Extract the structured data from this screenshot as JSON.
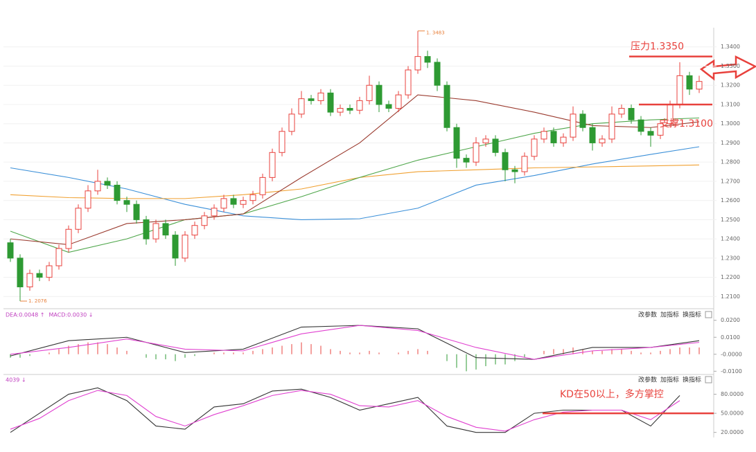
{
  "chart_data": [
    {
      "type": "candlestick",
      "open": [
        1.238,
        1.23,
        1.215,
        1.222,
        1.22,
        1.226,
        1.235,
        1.245,
        1.256,
        1.265,
        1.27,
        1.268,
        1.26,
        1.258,
        1.25,
        1.24,
        1.248,
        1.242,
        1.23,
        1.242,
        1.247,
        1.252,
        1.256,
        1.261,
        1.258,
        1.26,
        1.263,
        1.272,
        1.285,
        1.296,
        1.305,
        1.313,
        1.312,
        1.316,
        1.306,
        1.308,
        1.307,
        1.312,
        1.32,
        1.31,
        1.308,
        1.315,
        1.328,
        1.335,
        1.332,
        1.32,
        1.298,
        1.282,
        1.28,
        1.29,
        1.292,
        1.285,
        1.276,
        1.275,
        1.283,
        1.292,
        1.296,
        1.29,
        1.293,
        1.305,
        1.298,
        1.29,
        1.292,
        1.305,
        1.308,
        1.302,
        1.296,
        1.294,
        1.3,
        1.31,
        1.325,
        1.318
      ],
      "high": [
        1.24,
        1.232,
        1.224,
        1.224,
        1.228,
        1.237,
        1.247,
        1.258,
        1.268,
        1.276,
        1.272,
        1.27,
        1.262,
        1.26,
        1.252,
        1.25,
        1.25,
        1.244,
        1.244,
        1.249,
        1.254,
        1.258,
        1.263,
        1.263,
        1.262,
        1.265,
        1.274,
        1.287,
        1.298,
        1.308,
        1.317,
        1.315,
        1.318,
        1.318,
        1.31,
        1.31,
        1.314,
        1.325,
        1.322,
        1.312,
        1.317,
        1.33,
        1.3483,
        1.338,
        1.334,
        1.322,
        1.3,
        1.284,
        1.293,
        1.294,
        1.294,
        1.287,
        1.278,
        1.285,
        1.294,
        1.298,
        1.298,
        1.295,
        1.309,
        1.307,
        1.3,
        1.294,
        1.309,
        1.31,
        1.31,
        1.304,
        1.298,
        1.302,
        1.312,
        1.332,
        1.327,
        1.325
      ],
      "low": [
        1.228,
        1.2076,
        1.213,
        1.218,
        1.218,
        1.224,
        1.233,
        1.243,
        1.254,
        1.263,
        1.266,
        1.258,
        1.254,
        1.248,
        1.237,
        1.238,
        1.24,
        1.226,
        1.228,
        1.24,
        1.245,
        1.25,
        1.254,
        1.256,
        1.256,
        1.258,
        1.261,
        1.27,
        1.283,
        1.294,
        1.303,
        1.31,
        1.31,
        1.304,
        1.304,
        1.305,
        1.305,
        1.31,
        1.306,
        1.306,
        1.306,
        1.313,
        1.326,
        1.329,
        1.317,
        1.296,
        1.277,
        1.277,
        1.278,
        1.288,
        1.283,
        1.27,
        1.269,
        1.273,
        1.281,
        1.29,
        1.288,
        1.288,
        1.291,
        1.296,
        1.286,
        1.288,
        1.29,
        1.303,
        1.3,
        1.294,
        1.288,
        1.292,
        1.298,
        1.308,
        1.315,
        1.316
      ],
      "close": [
        1.23,
        1.215,
        1.222,
        1.22,
        1.226,
        1.235,
        1.245,
        1.256,
        1.265,
        1.27,
        1.268,
        1.26,
        1.258,
        1.25,
        1.24,
        1.248,
        1.242,
        1.23,
        1.242,
        1.247,
        1.252,
        1.256,
        1.261,
        1.258,
        1.26,
        1.263,
        1.272,
        1.285,
        1.296,
        1.305,
        1.313,
        1.312,
        1.316,
        1.306,
        1.308,
        1.307,
        1.312,
        1.32,
        1.31,
        1.308,
        1.315,
        1.328,
        1.335,
        1.332,
        1.32,
        1.298,
        1.282,
        1.28,
        1.29,
        1.292,
        1.285,
        1.276,
        1.275,
        1.283,
        1.292,
        1.296,
        1.29,
        1.293,
        1.305,
        1.298,
        1.29,
        1.292,
        1.305,
        1.308,
        1.302,
        1.296,
        1.294,
        1.3,
        1.31,
        1.325,
        1.318,
        1.322
      ],
      "up_color": "#e8413c",
      "down_color": "#2e9a33",
      "series": [
        {
          "color": "#3a8fd8",
          "x": [
            0,
            6,
            12,
            18,
            24,
            30,
            36,
            42,
            48,
            54,
            60,
            66,
            71
          ],
          "values": [
            1.277,
            1.272,
            1.266,
            1.258,
            1.252,
            1.25,
            1.2505,
            1.256,
            1.268,
            1.273,
            1.279,
            1.284,
            1.288
          ]
        },
        {
          "color": "#f0a030",
          "x": [
            0,
            6,
            12,
            18,
            24,
            30,
            36,
            42,
            48,
            54,
            60,
            66,
            71
          ],
          "values": [
            1.263,
            1.2615,
            1.261,
            1.261,
            1.263,
            1.266,
            1.272,
            1.275,
            1.276,
            1.277,
            1.2775,
            1.278,
            1.2785
          ]
        },
        {
          "color": "#4ea64a",
          "x": [
            0,
            6,
            12,
            18,
            24,
            30,
            36,
            42,
            48,
            54,
            60,
            66,
            71
          ],
          "values": [
            1.244,
            1.233,
            1.24,
            1.25,
            1.253,
            1.262,
            1.272,
            1.281,
            1.288,
            1.295,
            1.3,
            1.302,
            1.303
          ]
        },
        {
          "color": "#9a3a2e",
          "x": [
            0,
            6,
            12,
            18,
            24,
            30,
            36,
            42,
            48,
            54,
            60,
            66,
            71
          ],
          "values": [
            1.24,
            1.237,
            1.248,
            1.25,
            1.253,
            1.272,
            1.29,
            1.315,
            1.312,
            1.306,
            1.299,
            1.298,
            1.301
          ]
        }
      ],
      "ylim": [
        1.204,
        1.35
      ],
      "yticks": [
        {
          "value": 1.34,
          "label": "1.3400"
        },
        {
          "value": 1.33,
          "label": "1.3300"
        },
        {
          "value": 1.32,
          "label": "1.3200"
        },
        {
          "value": 1.31,
          "label": "1.3100"
        },
        {
          "value": 1.3,
          "label": "1.3000"
        },
        {
          "value": 1.29,
          "label": "1.2900"
        },
        {
          "value": 1.28,
          "label": "1.2800"
        },
        {
          "value": 1.27,
          "label": "1.2700"
        },
        {
          "value": 1.26,
          "label": "1.2600"
        },
        {
          "value": 1.25,
          "label": "1.2500"
        },
        {
          "value": 1.24,
          "label": "1.2400"
        },
        {
          "value": 1.23,
          "label": "1.2300"
        },
        {
          "value": 1.22,
          "label": "1.2200"
        },
        {
          "value": 1.21,
          "label": "1.2100"
        }
      ],
      "grid": true,
      "high_label": {
        "value": 1.3483,
        "label": "1. 3483"
      },
      "low_label": {
        "value": 1.2076,
        "label": "1. 2076"
      },
      "annotations": [
        {
          "text": "压力1.3350",
          "value": 1.335
        },
        {
          "text": "支撑1.3100",
          "value": 1.31
        }
      ]
    },
    {
      "type": "macd",
      "labels": [
        "DEA:0.0048 ↑",
        "MACD:0.0030 ↓"
      ],
      "buttons": [
        "改参数",
        "加指标",
        "换指标"
      ],
      "histogram": [
        -0.002,
        -0.002,
        -0.001,
        0.0,
        0.001,
        0.003,
        0.005,
        0.006,
        0.007,
        0.007,
        0.006,
        0.004,
        0.002,
        0.0,
        -0.002,
        -0.003,
        -0.003,
        -0.004,
        -0.002,
        -0.001,
        0.0,
        0.001,
        0.001,
        0.001,
        0.001,
        0.002,
        0.003,
        0.004,
        0.005,
        0.006,
        0.007,
        0.006,
        0.005,
        0.003,
        0.002,
        0.001,
        0.001,
        0.002,
        0.001,
        0.0,
        0.001,
        0.002,
        0.003,
        0.002,
        0.0,
        -0.004,
        -0.008,
        -0.01,
        -0.009,
        -0.007,
        -0.006,
        -0.006,
        -0.004,
        -0.002,
        0.0,
        0.002,
        0.003,
        0.003,
        0.004,
        0.003,
        0.002,
        0.002,
        0.003,
        0.003,
        0.002,
        0.001,
        0.001,
        0.002,
        0.003,
        0.004,
        0.004,
        0.004
      ],
      "series": [
        {
          "color": "#333333",
          "x": [
            0,
            6,
            12,
            18,
            24,
            30,
            36,
            42,
            48,
            54,
            60,
            66,
            71
          ],
          "values": [
            -0.001,
            0.008,
            0.01,
            0.001,
            0.003,
            0.016,
            0.017,
            0.015,
            -0.002,
            -0.003,
            0.004,
            0.004,
            0.008
          ]
        },
        {
          "color": "#e040d0",
          "x": [
            0,
            6,
            12,
            18,
            24,
            30,
            36,
            42,
            48,
            54,
            60,
            66,
            71
          ],
          "values": [
            0.0,
            0.004,
            0.009,
            0.003,
            0.002,
            0.012,
            0.017,
            0.014,
            0.004,
            -0.003,
            0.002,
            0.004,
            0.007
          ]
        }
      ],
      "ylim": [
        -0.0115,
        0.026
      ],
      "yticks": [
        {
          "value": 0.02,
          "label": "0.0200"
        },
        {
          "value": 0.01,
          "label": "0.0100"
        },
        {
          "value": 0,
          "label": "-0.0000"
        },
        {
          "value": -0.01,
          "label": "-0.0100"
        }
      ]
    },
    {
      "type": "kd",
      "labels": [
        "4039 ↓"
      ],
      "buttons": [
        "改参数",
        "加指标",
        "换指标"
      ],
      "series": [
        {
          "color": "#333333",
          "x": [
            0,
            3,
            6,
            9,
            12,
            15,
            18,
            21,
            24,
            27,
            30,
            33,
            36,
            39,
            42,
            45,
            48,
            51,
            54,
            57,
            60,
            63,
            66,
            69
          ],
          "values": [
            20,
            50,
            80,
            90,
            70,
            30,
            25,
            60,
            65,
            85,
            88,
            75,
            55,
            65,
            75,
            30,
            20,
            20,
            50,
            55,
            55,
            55,
            30,
            78
          ]
        },
        {
          "color": "#e040d0",
          "x": [
            0,
            3,
            6,
            9,
            12,
            15,
            18,
            21,
            24,
            27,
            30,
            33,
            36,
            39,
            42,
            45,
            48,
            51,
            54,
            57,
            60,
            63,
            66,
            69
          ],
          "values": [
            25,
            42,
            70,
            86,
            78,
            45,
            30,
            48,
            62,
            78,
            86,
            80,
            62,
            60,
            70,
            45,
            28,
            22,
            40,
            52,
            55,
            55,
            40,
            70
          ]
        }
      ],
      "ylim": [
        12,
        110
      ],
      "yticks": [
        {
          "value": 80,
          "label": "80.0000"
        },
        {
          "value": 50,
          "label": "50.0000"
        },
        {
          "value": 20,
          "label": "20.0000"
        }
      ],
      "annotations": [
        {
          "text": "KD在50以上，多方掌控",
          "value": 50
        }
      ]
    }
  ]
}
